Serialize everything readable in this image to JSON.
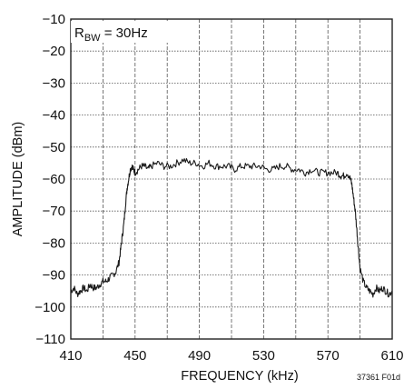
{
  "chart_data": {
    "type": "line",
    "title": "",
    "xlabel": "FREQUENCY (kHz)",
    "ylabel": "AMPLITUDE (dBm)",
    "xlim": [
      410,
      610
    ],
    "ylim": [
      -110,
      -10
    ],
    "x_ticks": [
      410,
      450,
      490,
      530,
      570,
      610
    ],
    "y_ticks": [
      -10,
      -20,
      -30,
      -40,
      -50,
      -60,
      -70,
      -80,
      -90,
      -100,
      -110
    ],
    "grid": true,
    "legend": "none",
    "annotation": {
      "main": "R",
      "subscript": "BW",
      "rest": " = 30Hz"
    },
    "figure_code": "37361 F01d",
    "line_color": "#1a1a1a",
    "series": [
      {
        "x": [
          410,
          412,
          414,
          416,
          418,
          420,
          422,
          424,
          426,
          428,
          430,
          432,
          434,
          436,
          438,
          440,
          441,
          442,
          443,
          444,
          445,
          446,
          447,
          448,
          449,
          450,
          452,
          454,
          456,
          458,
          460,
          464,
          468,
          472,
          476,
          480,
          484,
          488,
          492,
          496,
          500,
          504,
          508,
          512,
          516,
          520,
          524,
          528,
          532,
          536,
          540,
          544,
          548,
          552,
          556,
          560,
          564,
          568,
          572,
          576,
          578,
          580,
          582,
          584,
          585,
          586,
          587,
          588,
          589,
          590,
          592,
          594,
          596,
          598,
          600,
          602,
          604,
          606,
          608,
          610
        ],
        "y": [
          -95,
          -94,
          -96,
          -95,
          -94,
          -95,
          -93,
          -94,
          -94,
          -93,
          -92,
          -92,
          -91,
          -90,
          -89,
          -86,
          -82,
          -78,
          -74,
          -68,
          -63,
          -60,
          -57,
          -56,
          -57,
          -58,
          -57,
          -56,
          -56,
          -57,
          -56,
          -55,
          -56,
          -56,
          -55,
          -54,
          -55,
          -55,
          -56,
          -55,
          -56,
          -56,
          -56,
          -57,
          -56,
          -56,
          -56,
          -56,
          -57,
          -57,
          -56,
          -56,
          -57,
          -57,
          -58,
          -57,
          -58,
          -58,
          -58,
          -58,
          -59,
          -59,
          -58,
          -60,
          -62,
          -66,
          -70,
          -76,
          -82,
          -88,
          -92,
          -94,
          -95,
          -96,
          -94,
          -95,
          -94,
          -95,
          -96,
          -95
        ]
      }
    ]
  }
}
